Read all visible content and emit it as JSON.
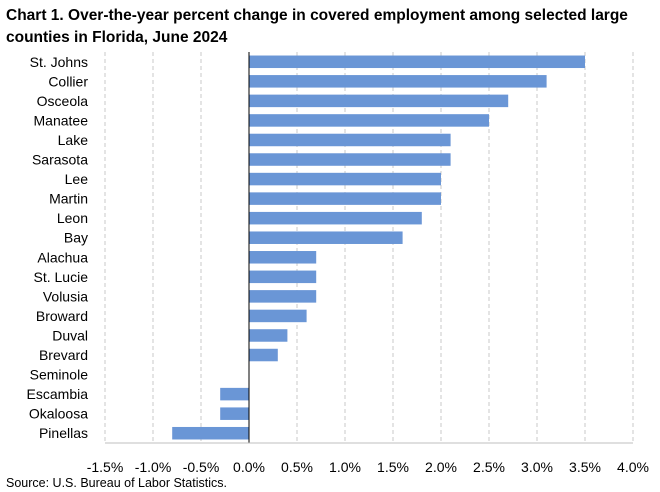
{
  "chart_title": "Chart 1. Over-the-year percent change in covered employment among selected large counties in Florida, June 2024",
  "source": "Source: U.S. Bureau of Labor Statistics.",
  "chart_data": {
    "type": "bar",
    "orientation": "horizontal",
    "title": "Chart 1. Over-the-year percent change in covered employment among selected large counties in Florida, June 2024",
    "categories": [
      "St. Johns",
      "Collier",
      "Osceola",
      "Manatee",
      "Lake",
      "Sarasota",
      "Lee",
      "Martin",
      "Leon",
      "Bay",
      "Alachua",
      "St. Lucie",
      "Volusia",
      "Broward",
      "Duval",
      "Brevard",
      "Seminole",
      "Escambia",
      "Okaloosa",
      "Pinellas"
    ],
    "values": [
      3.5,
      3.1,
      2.7,
      2.5,
      2.1,
      2.1,
      2.0,
      2.0,
      1.8,
      1.6,
      0.7,
      0.7,
      0.7,
      0.6,
      0.4,
      0.3,
      0.0,
      -0.3,
      -0.3,
      -0.8
    ],
    "xlim": [
      -1.5,
      4.0
    ],
    "xticks": [
      -1.5,
      -1.0,
      -0.5,
      0.0,
      0.5,
      1.0,
      1.5,
      2.0,
      2.5,
      3.0,
      3.5,
      4.0
    ],
    "xtick_labels": [
      "-1.5%",
      "-1.0%",
      "-0.5%",
      "0.0%",
      "0.5%",
      "1.0%",
      "1.5%",
      "2.0%",
      "2.5%",
      "3.0%",
      "3.5%",
      "4.0%"
    ],
    "xlabel": "",
    "ylabel": "",
    "grid": "vertical dashed",
    "bar_color": "#6a96d6"
  }
}
